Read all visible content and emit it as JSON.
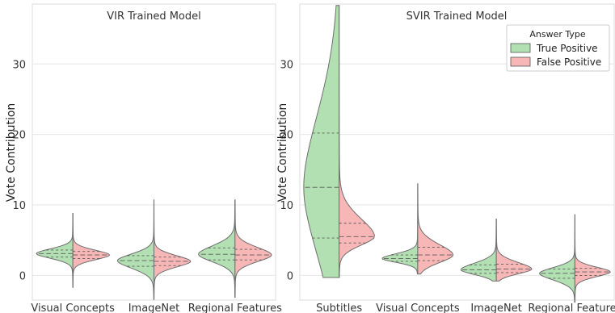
{
  "chart_data": [
    {
      "type": "violin",
      "title": "VIR Trained Model",
      "xlabel": "",
      "ylabel": "Vote Contribution",
      "ylim": [
        -3.5,
        38.5
      ],
      "yticks": [
        0,
        10,
        20,
        30
      ],
      "grid": true,
      "categories": [
        "Visual Concepts",
        "ImageNet",
        "Regional Features"
      ],
      "series": [
        {
          "name": "True Positive",
          "color": "#b2e0b2",
          "values": [
            {
              "category": "Visual Concepts",
              "min": -1.7,
              "max": 8.8,
              "q1": 2.6,
              "median": 3.1,
              "q3": 3.6
            },
            {
              "category": "ImageNet",
              "min": -3.4,
              "max": 10.7,
              "q1": 1.3,
              "median": 2.1,
              "q3": 2.8
            },
            {
              "category": "Regional Features",
              "min": -3.1,
              "max": 10.7,
              "q1": 2.2,
              "median": 3.0,
              "q3": 3.9
            }
          ]
        },
        {
          "name": "False Positive",
          "color": "#f7b7b7",
          "values": [
            {
              "category": "Visual Concepts",
              "min": -1.7,
              "max": 8.8,
              "q1": 2.4,
              "median": 2.9,
              "q3": 3.4
            },
            {
              "category": "ImageNet",
              "min": -3.4,
              "max": 10.7,
              "q1": 1.4,
              "median": 2.0,
              "q3": 2.6
            },
            {
              "category": "Regional Features",
              "min": -3.1,
              "max": 10.7,
              "q1": 2.2,
              "median": 2.9,
              "q3": 3.7
            }
          ]
        }
      ]
    },
    {
      "type": "violin",
      "title": "SVIR Trained Model",
      "xlabel": "",
      "ylabel": "Vote Contribution",
      "ylim": [
        -3.5,
        38.5
      ],
      "yticks": [
        0,
        10,
        20,
        30
      ],
      "grid": true,
      "categories": [
        "Subtitles",
        "Visual Concepts",
        "ImageNet",
        "Regional Features"
      ],
      "legend": {
        "title": "Answer Type",
        "position": "top-right"
      },
      "series": [
        {
          "name": "True Positive",
          "color": "#b2e0b2",
          "values": [
            {
              "category": "Subtitles",
              "min": -0.3,
              "max": 38.3,
              "q1": 5.3,
              "median": 12.5,
              "q3": 20.2
            },
            {
              "category": "Visual Concepts",
              "min": 0.2,
              "max": 13.0,
              "q1": 2.0,
              "median": 2.4,
              "q3": 2.9
            },
            {
              "category": "ImageNet",
              "min": -0.8,
              "max": 8.0,
              "q1": 0.3,
              "median": 0.8,
              "q3": 1.5
            },
            {
              "category": "Regional Features",
              "min": -3.8,
              "max": 8.6,
              "q1": -0.4,
              "median": 0.3,
              "q3": 0.9
            }
          ]
        },
        {
          "name": "False Positive",
          "color": "#f7b7b7",
          "values": [
            {
              "category": "Subtitles",
              "min": -0.3,
              "max": 38.3,
              "q1": 4.6,
              "median": 5.5,
              "q3": 7.4
            },
            {
              "category": "Visual Concepts",
              "min": 0.2,
              "max": 13.0,
              "q1": 2.1,
              "median": 2.9,
              "q3": 4.0
            },
            {
              "category": "ImageNet",
              "min": -0.8,
              "max": 8.0,
              "q1": 0.4,
              "median": 0.9,
              "q3": 1.6
            },
            {
              "category": "Regional Features",
              "min": -3.8,
              "max": 8.6,
              "q1": 0.0,
              "median": 0.5,
              "q3": 1.0
            }
          ]
        }
      ]
    }
  ]
}
